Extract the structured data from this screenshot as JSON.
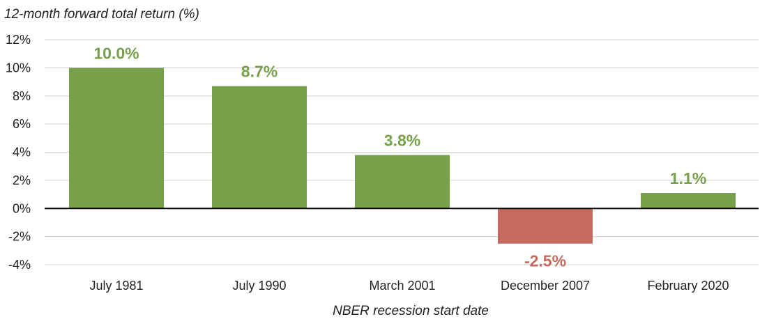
{
  "chart_data": {
    "type": "bar",
    "ylabel": "12-month forward total return (%)",
    "xlabel": "NBER recession start date",
    "categories": [
      "July 1981",
      "July 1990",
      "March 2001",
      "December 2007",
      "February 2020"
    ],
    "values": [
      10.0,
      8.7,
      3.8,
      -2.5,
      1.1
    ],
    "value_labels": [
      "10.0%",
      "8.7%",
      "3.8%",
      "-2.5%",
      "1.1%"
    ],
    "ylim": [
      -4,
      12
    ],
    "yticks": [
      -4,
      -2,
      0,
      2,
      4,
      6,
      8,
      10,
      12
    ],
    "ytick_labels": [
      "-4%",
      "-2%",
      "0%",
      "2%",
      "4%",
      "6%",
      "8%",
      "10%",
      "12%"
    ],
    "grid": true,
    "colors": {
      "positive": "#77a04b",
      "negative": "#c46a5f",
      "grid": "#d0d0d0",
      "zero_line": "#000000"
    }
  }
}
